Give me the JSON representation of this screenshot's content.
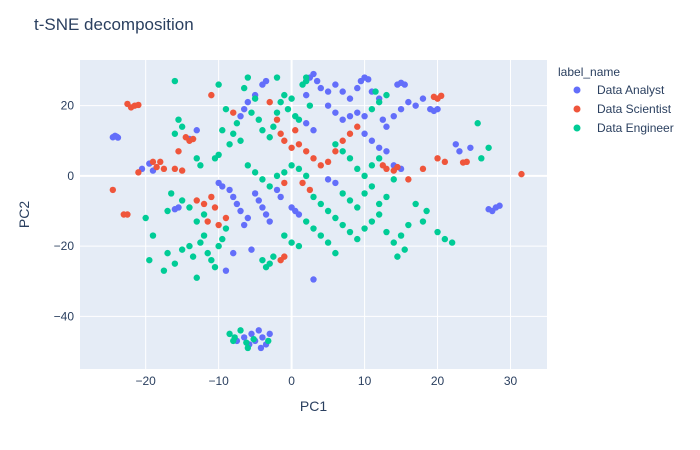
{
  "chart_data": {
    "type": "scatter",
    "title": "t-SNE decomposition",
    "xlabel": "PC1",
    "ylabel": "PC2",
    "xlim": [
      -29,
      35
    ],
    "ylim": [
      -55,
      33
    ],
    "xticks": [
      -20,
      -10,
      0,
      10,
      20,
      30
    ],
    "yticks": [
      -40,
      -20,
      0,
      20
    ],
    "grid": true,
    "legend_title": "label_name",
    "legend_position": "right",
    "series": [
      {
        "name": "Data Analyst",
        "color": "#636efa",
        "points": [
          [
            -24.5,
            11
          ],
          [
            -24,
            11.2
          ],
          [
            -23.8,
            10.9
          ],
          [
            -24.2,
            11.4
          ],
          [
            -20.5,
            2
          ],
          [
            -19.5,
            3.5
          ],
          [
            -19,
            1.5
          ],
          [
            -14,
            10.5
          ],
          [
            -13,
            13
          ],
          [
            -15.5,
            -9
          ],
          [
            -16,
            -9.5
          ],
          [
            -10,
            -2
          ],
          [
            -9.5,
            -3
          ],
          [
            -8.5,
            -4
          ],
          [
            -8,
            -6
          ],
          [
            -7.5,
            -8
          ],
          [
            -7,
            -10
          ],
          [
            -6,
            -12
          ],
          [
            -6.5,
            -14
          ],
          [
            -5,
            -5
          ],
          [
            -4.5,
            -7
          ],
          [
            -4,
            -9
          ],
          [
            -3.5,
            -11
          ],
          [
            -3,
            -13
          ],
          [
            -2,
            -4
          ],
          [
            -1.5,
            -6
          ],
          [
            0,
            -9
          ],
          [
            0.5,
            -10
          ],
          [
            1,
            -11
          ],
          [
            -9,
            -27
          ],
          [
            -8,
            -22
          ],
          [
            -5.5,
            -21
          ],
          [
            -7,
            17
          ],
          [
            -6.5,
            19
          ],
          [
            -6,
            21
          ],
          [
            -5,
            23
          ],
          [
            -4,
            26
          ],
          [
            -3.5,
            27
          ],
          [
            2.5,
            28
          ],
          [
            3,
            29
          ],
          [
            3.5,
            27
          ],
          [
            4,
            25
          ],
          [
            2,
            23
          ],
          [
            5,
            24
          ],
          [
            6,
            26
          ],
          [
            7,
            24
          ],
          [
            8,
            22
          ],
          [
            9,
            25
          ],
          [
            9.5,
            27
          ],
          [
            10,
            28
          ],
          [
            10.5,
            27.5
          ],
          [
            11,
            24
          ],
          [
            12,
            22
          ],
          [
            5,
            20
          ],
          [
            6,
            18
          ],
          [
            7,
            16
          ],
          [
            8,
            17
          ],
          [
            9,
            18
          ],
          [
            10,
            17
          ],
          [
            12.5,
            16
          ],
          [
            13,
            14
          ],
          [
            14,
            17
          ],
          [
            15,
            19
          ],
          [
            16,
            21
          ],
          [
            17,
            20
          ],
          [
            18,
            22
          ],
          [
            19,
            19
          ],
          [
            19.5,
            18.5
          ],
          [
            20,
            19
          ],
          [
            14.5,
            26
          ],
          [
            15,
            26.5
          ],
          [
            15.5,
            26
          ],
          [
            10,
            12
          ],
          [
            11,
            10
          ],
          [
            12,
            8
          ],
          [
            13,
            7
          ],
          [
            14,
            3
          ],
          [
            15,
            2
          ],
          [
            5,
            -1
          ],
          [
            6,
            -2
          ],
          [
            3,
            -29.5
          ],
          [
            22.5,
            9
          ],
          [
            23,
            7
          ],
          [
            24.5,
            8
          ],
          [
            28,
            -9
          ],
          [
            27,
            -9.5
          ],
          [
            27.5,
            -10
          ],
          [
            28.5,
            -8.5
          ],
          [
            -7.5,
            -47
          ],
          [
            -6.5,
            -46
          ],
          [
            -5.5,
            -45
          ],
          [
            -5,
            -47
          ],
          [
            -4.5,
            -44
          ],
          [
            -4,
            -46
          ],
          [
            -3.5,
            -48
          ],
          [
            -3,
            -45
          ],
          [
            -5.8,
            -48
          ],
          [
            -4.2,
            -49
          ],
          [
            2,
            15
          ],
          [
            3,
            13
          ]
        ]
      },
      {
        "name": "Data Scientist",
        "color": "#ef553b",
        "points": [
          [
            -22.5,
            20.5
          ],
          [
            -22,
            19.5
          ],
          [
            -21.5,
            20
          ],
          [
            -21,
            20.2
          ],
          [
            -24.5,
            -4
          ],
          [
            -23,
            -11
          ],
          [
            -22.5,
            -11
          ],
          [
            -21,
            1
          ],
          [
            -19,
            4
          ],
          [
            -18,
            4
          ],
          [
            -17.5,
            2
          ],
          [
            -18.5,
            2.5
          ],
          [
            -16,
            2
          ],
          [
            -15,
            1.5
          ],
          [
            -14.5,
            11
          ],
          [
            -14,
            10
          ],
          [
            -13.5,
            10.5
          ],
          [
            -15.5,
            7
          ],
          [
            -13,
            -7
          ],
          [
            -12,
            -8
          ],
          [
            -11,
            -6
          ],
          [
            -10.5,
            -9
          ],
          [
            -11.5,
            -13
          ],
          [
            -10,
            -14
          ],
          [
            -9,
            -12
          ],
          [
            -11,
            23
          ],
          [
            -8,
            18
          ],
          [
            -3,
            21
          ],
          [
            -2,
            16
          ],
          [
            -1.5,
            12
          ],
          [
            -1,
            10
          ],
          [
            0,
            8
          ],
          [
            0.5,
            13
          ],
          [
            1,
            9
          ],
          [
            2,
            7
          ],
          [
            3,
            5
          ],
          [
            4,
            3
          ],
          [
            1.5,
            -2
          ],
          [
            2.5,
            -4
          ],
          [
            5,
            4
          ],
          [
            6,
            7
          ],
          [
            7,
            10
          ],
          [
            8,
            12
          ],
          [
            9,
            14
          ],
          [
            -1,
            -23
          ],
          [
            -1.5,
            -24
          ],
          [
            13,
            2
          ],
          [
            14,
            1.5
          ],
          [
            12.5,
            3
          ],
          [
            14.5,
            2.5
          ],
          [
            16,
            -1
          ],
          [
            18,
            2
          ],
          [
            19.5,
            22.5
          ],
          [
            20,
            22
          ],
          [
            20.5,
            22.8
          ],
          [
            20,
            5
          ],
          [
            21,
            4
          ],
          [
            24,
            4
          ],
          [
            23.5,
            3.8
          ],
          [
            31.5,
            0.5
          ],
          [
            -1,
            -2
          ]
        ]
      },
      {
        "name": "Data Engineer",
        "color": "#00cc96",
        "points": [
          [
            -16,
            27
          ],
          [
            -15.5,
            16
          ],
          [
            -15,
            14
          ],
          [
            -16,
            12
          ],
          [
            -16.5,
            -5
          ],
          [
            -15,
            -7
          ],
          [
            -14,
            -9
          ],
          [
            -19,
            -17
          ],
          [
            -19.5,
            -24
          ],
          [
            -17,
            -22
          ],
          [
            -17.5,
            -27
          ],
          [
            -16,
            -25
          ],
          [
            -15,
            -21
          ],
          [
            -14,
            -20
          ],
          [
            -13.5,
            -23
          ],
          [
            -13,
            -29
          ],
          [
            -12.5,
            -19
          ],
          [
            -12,
            -17
          ],
          [
            -11.5,
            -22
          ],
          [
            -11,
            -24
          ],
          [
            -10.5,
            -26
          ],
          [
            -10,
            -20
          ],
          [
            -9.5,
            -18
          ],
          [
            -9,
            -15
          ],
          [
            -13,
            -13
          ],
          [
            -12,
            -11
          ],
          [
            -10,
            26
          ],
          [
            -9,
            19
          ],
          [
            -9.5,
            13
          ],
          [
            -10.5,
            5
          ],
          [
            -10,
            6
          ],
          [
            -8.5,
            9
          ],
          [
            -8,
            12
          ],
          [
            -7.5,
            15
          ],
          [
            -7,
            10
          ],
          [
            -6.5,
            25
          ],
          [
            -6,
            28
          ],
          [
            -5,
            22
          ],
          [
            -5.5,
            18
          ],
          [
            -4.5,
            16
          ],
          [
            -4,
            13
          ],
          [
            -3,
            11
          ],
          [
            -2.5,
            14
          ],
          [
            -2,
            18
          ],
          [
            -1.5,
            21
          ],
          [
            -1,
            23
          ],
          [
            -0.5,
            19
          ],
          [
            0,
            22
          ],
          [
            0.5,
            17
          ],
          [
            1,
            16
          ],
          [
            1.5,
            26
          ],
          [
            2,
            28
          ],
          [
            2.5,
            20
          ],
          [
            -6,
            3
          ],
          [
            -5,
            1
          ],
          [
            -4,
            -1
          ],
          [
            -3,
            -3
          ],
          [
            -2,
            0
          ],
          [
            -1,
            1
          ],
          [
            0,
            3
          ],
          [
            1,
            2
          ],
          [
            2,
            0
          ],
          [
            3,
            -6
          ],
          [
            4,
            -8
          ],
          [
            5,
            -10
          ],
          [
            6,
            -12
          ],
          [
            7,
            -14
          ],
          [
            8,
            -16
          ],
          [
            9,
            -18
          ],
          [
            10,
            -15
          ],
          [
            11,
            -13
          ],
          [
            12,
            -11
          ],
          [
            13,
            -16
          ],
          [
            14,
            -19
          ],
          [
            15,
            -17
          ],
          [
            16,
            -14
          ],
          [
            15.5,
            -21
          ],
          [
            14.5,
            -23
          ],
          [
            6,
            -22
          ],
          [
            5,
            -19
          ],
          [
            4,
            -17
          ],
          [
            3,
            -15
          ],
          [
            2,
            -13
          ],
          [
            7,
            -5
          ],
          [
            8,
            -7
          ],
          [
            9,
            -9
          ],
          [
            10,
            -5
          ],
          [
            11,
            -3
          ],
          [
            12,
            -8
          ],
          [
            13,
            -6
          ],
          [
            10,
            0
          ],
          [
            9,
            2
          ],
          [
            8,
            5
          ],
          [
            7,
            7
          ],
          [
            6,
            9
          ],
          [
            11,
            3
          ],
          [
            12,
            5
          ],
          [
            14,
            -1
          ],
          [
            11,
            19
          ],
          [
            12,
            21
          ],
          [
            13,
            23
          ],
          [
            11.5,
            24
          ],
          [
            17,
            -8
          ],
          [
            18.5,
            -10
          ],
          [
            18,
            -13
          ],
          [
            20,
            -16
          ],
          [
            21,
            -18
          ],
          [
            22,
            -19
          ],
          [
            25.5,
            15
          ],
          [
            27,
            8
          ],
          [
            26,
            5
          ],
          [
            -4,
            -24
          ],
          [
            -3,
            -25
          ],
          [
            -2.5,
            -23
          ],
          [
            -3.5,
            -26
          ],
          [
            -8.5,
            -45
          ],
          [
            -8,
            -47
          ],
          [
            -7,
            -44
          ],
          [
            -6,
            -49
          ],
          [
            -5.2,
            -46.5
          ],
          [
            -7.8,
            -46
          ],
          [
            -6.2,
            -47.5
          ],
          [
            -3.2,
            -47
          ],
          [
            -1,
            -17
          ],
          [
            0,
            -19
          ],
          [
            1,
            -20
          ],
          [
            -2,
            28
          ],
          [
            2,
            27
          ],
          [
            -13,
            5
          ],
          [
            -12.5,
            3
          ],
          [
            -17,
            -10
          ],
          [
            -20,
            -12
          ]
        ]
      }
    ]
  }
}
